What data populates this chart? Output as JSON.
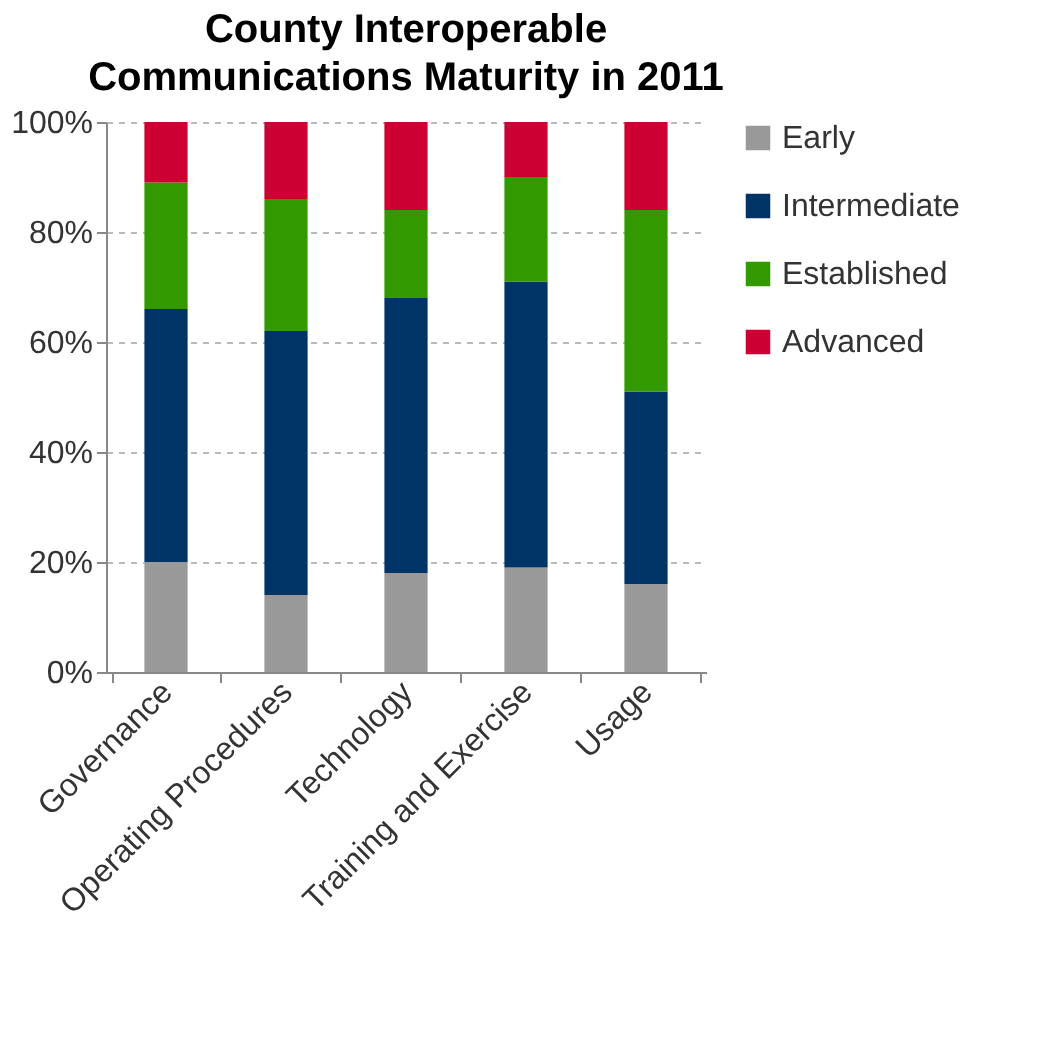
{
  "chart_data": {
    "type": "bar",
    "stacked": true,
    "title": "County Interoperable Communications Maturity in 2011",
    "categories": [
      "Governance",
      "Operating Procedures",
      "Technology",
      "Training and Exercise",
      "Usage"
    ],
    "series": [
      {
        "name": "Early",
        "color": "#999999",
        "values": [
          20,
          14,
          18,
          19,
          16
        ]
      },
      {
        "name": "Intermediate",
        "color": "#003366",
        "values": [
          46,
          48,
          50,
          52,
          35
        ]
      },
      {
        "name": "Established",
        "color": "#339900",
        "values": [
          23,
          24,
          16,
          19,
          33
        ]
      },
      {
        "name": "Advanced",
        "color": "#cc0033",
        "values": [
          11,
          14,
          16,
          10,
          16
        ]
      }
    ],
    "ylim": [
      0,
      100
    ],
    "yticks": [
      {
        "value": 0,
        "label": "0%"
      },
      {
        "value": 20,
        "label": "20%"
      },
      {
        "value": 40,
        "label": "40%"
      },
      {
        "value": 60,
        "label": "60%"
      },
      {
        "value": 80,
        "label": "80%"
      },
      {
        "value": 100,
        "label": "100%"
      }
    ],
    "grid": "y",
    "legend": "right"
  }
}
